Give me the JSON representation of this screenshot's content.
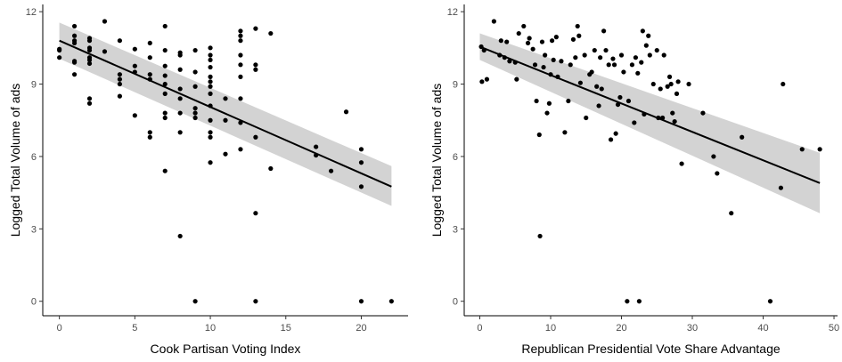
{
  "chart_data": [
    {
      "type": "scatter",
      "title": "",
      "xlabel": "Cook Partisan Voting Index",
      "ylabel": "Logged Total Volume of ads",
      "xlim": [
        -1.1,
        23.1
      ],
      "ylim": [
        -0.6,
        12.3
      ],
      "x_ticks": [
        0,
        5,
        10,
        15,
        20
      ],
      "y_ticks": [
        0,
        3,
        6,
        9,
        12
      ],
      "grid": false,
      "legend": "none",
      "point_color": "#000000",
      "fit": {
        "x": [
          0,
          22
        ],
        "y": [
          10.8,
          4.75
        ],
        "ci_lower": [
          10.05,
          3.95
        ],
        "ci_upper": [
          11.55,
          5.6
        ],
        "line_color": "#000000",
        "band_color": "#d3d3d3"
      },
      "points": [
        [
          0,
          10.1
        ],
        [
          0,
          10.4
        ],
        [
          0,
          10.45
        ],
        [
          1,
          11.4
        ],
        [
          1,
          11.0
        ],
        [
          1,
          10.8
        ],
        [
          1,
          10.7
        ],
        [
          1,
          9.95
        ],
        [
          1,
          9.9
        ],
        [
          1,
          9.4
        ],
        [
          2,
          10.9
        ],
        [
          2,
          10.8
        ],
        [
          2,
          10.5
        ],
        [
          2,
          10.4
        ],
        [
          2,
          10.1
        ],
        [
          2,
          10.0
        ],
        [
          2,
          9.85
        ],
        [
          2,
          8.4
        ],
        [
          2,
          8.2
        ],
        [
          3,
          11.6
        ],
        [
          3,
          10.35
        ],
        [
          4,
          10.8
        ],
        [
          4,
          9.4
        ],
        [
          4,
          9.2
        ],
        [
          4,
          9.0
        ],
        [
          4,
          8.5
        ],
        [
          5,
          10.45
        ],
        [
          5,
          9.75
        ],
        [
          5,
          9.5
        ],
        [
          5,
          7.7
        ],
        [
          6,
          10.7
        ],
        [
          6,
          10.1
        ],
        [
          6,
          9.4
        ],
        [
          6,
          9.2
        ],
        [
          6,
          7.0
        ],
        [
          6,
          6.8
        ],
        [
          7,
          11.4
        ],
        [
          7,
          10.4
        ],
        [
          7,
          9.75
        ],
        [
          7,
          9.35
        ],
        [
          7,
          9.0
        ],
        [
          7,
          8.6
        ],
        [
          7,
          7.8
        ],
        [
          7,
          7.6
        ],
        [
          7,
          5.4
        ],
        [
          8,
          10.3
        ],
        [
          8,
          10.2
        ],
        [
          8,
          9.6
        ],
        [
          8,
          8.8
        ],
        [
          8,
          8.4
        ],
        [
          8,
          7.8
        ],
        [
          8,
          7.0
        ],
        [
          8,
          2.7
        ],
        [
          9,
          10.4
        ],
        [
          9,
          9.5
        ],
        [
          9,
          8.9
        ],
        [
          9,
          8.0
        ],
        [
          9,
          7.8
        ],
        [
          9,
          7.6
        ],
        [
          9,
          0
        ],
        [
          10,
          10.5
        ],
        [
          10,
          10.2
        ],
        [
          10,
          10.0
        ],
        [
          10,
          9.7
        ],
        [
          10,
          9.3
        ],
        [
          10,
          9.1
        ],
        [
          10,
          8.9
        ],
        [
          10,
          8.6
        ],
        [
          10,
          8.1
        ],
        [
          10,
          7.5
        ],
        [
          10,
          7.0
        ],
        [
          10,
          6.8
        ],
        [
          10,
          5.75
        ],
        [
          11,
          8.4
        ],
        [
          11,
          7.5
        ],
        [
          11,
          6.1
        ],
        [
          12,
          11.2
        ],
        [
          12,
          11.0
        ],
        [
          12,
          10.8
        ],
        [
          12,
          10.2
        ],
        [
          12,
          9.8
        ],
        [
          12,
          9.3
        ],
        [
          12,
          8.4
        ],
        [
          12,
          7.4
        ],
        [
          12,
          6.3
        ],
        [
          13,
          11.3
        ],
        [
          13,
          9.8
        ],
        [
          13,
          9.6
        ],
        [
          13,
          6.8
        ],
        [
          13,
          3.65
        ],
        [
          13,
          0
        ],
        [
          14,
          11.1
        ],
        [
          14,
          5.5
        ],
        [
          17,
          6.4
        ],
        [
          17,
          6.05
        ],
        [
          18,
          5.4
        ],
        [
          19,
          7.85
        ],
        [
          20,
          6.3
        ],
        [
          20,
          5.75
        ],
        [
          20,
          4.75
        ],
        [
          20,
          0
        ],
        [
          22,
          0
        ]
      ]
    },
    {
      "type": "scatter",
      "title": "",
      "xlabel": "Republican Presidential Vote Share Advantage",
      "ylabel": "Logged Total Volume of ads",
      "xlim": [
        -2.2,
        50.5
      ],
      "ylim": [
        -0.6,
        12.3
      ],
      "x_ticks": [
        0,
        10,
        20,
        30,
        40,
        50
      ],
      "y_ticks": [
        0,
        3,
        6,
        9,
        12
      ],
      "grid": false,
      "legend": "none",
      "point_color": "#000000",
      "fit": {
        "x": [
          0,
          48
        ],
        "y": [
          10.55,
          4.9
        ],
        "ci_lower": [
          10.0,
          3.65
        ],
        "ci_upper": [
          11.1,
          6.15
        ],
        "line_color": "#000000",
        "band_color": "#d3d3d3"
      },
      "points": [
        [
          0.2,
          10.55
        ],
        [
          0.3,
          9.1
        ],
        [
          0.6,
          10.4
        ],
        [
          1.0,
          9.2
        ],
        [
          2.0,
          11.6
        ],
        [
          2.8,
          10.2
        ],
        [
          3.0,
          10.8
        ],
        [
          3.5,
          10.1
        ],
        [
          3.8,
          10.75
        ],
        [
          4.2,
          9.95
        ],
        [
          5.0,
          9.9
        ],
        [
          5.2,
          9.2
        ],
        [
          5.5,
          11.1
        ],
        [
          6.2,
          11.4
        ],
        [
          6.8,
          10.7
        ],
        [
          7.0,
          10.9
        ],
        [
          7.5,
          10.45
        ],
        [
          7.8,
          9.8
        ],
        [
          8.0,
          8.3
        ],
        [
          8.4,
          6.9
        ],
        [
          8.5,
          2.7
        ],
        [
          8.8,
          10.75
        ],
        [
          9.0,
          9.7
        ],
        [
          9.2,
          10.2
        ],
        [
          9.5,
          7.8
        ],
        [
          9.8,
          8.2
        ],
        [
          10.0,
          9.4
        ],
        [
          10.2,
          10.8
        ],
        [
          10.4,
          10.0
        ],
        [
          10.8,
          10.95
        ],
        [
          11.0,
          9.3
        ],
        [
          11.5,
          9.95
        ],
        [
          12.0,
          7.0
        ],
        [
          12.5,
          8.3
        ],
        [
          12.8,
          9.8
        ],
        [
          13.2,
          10.85
        ],
        [
          13.5,
          10.1
        ],
        [
          13.8,
          11.4
        ],
        [
          14.0,
          11.0
        ],
        [
          14.2,
          9.05
        ],
        [
          14.8,
          10.2
        ],
        [
          15.0,
          7.6
        ],
        [
          15.5,
          9.4
        ],
        [
          15.8,
          9.5
        ],
        [
          16.2,
          10.4
        ],
        [
          16.5,
          8.9
        ],
        [
          16.8,
          8.1
        ],
        [
          17.0,
          10.1
        ],
        [
          17.2,
          8.8
        ],
        [
          17.5,
          11.2
        ],
        [
          17.8,
          10.4
        ],
        [
          18.2,
          9.8
        ],
        [
          18.5,
          6.7
        ],
        [
          18.8,
          10.05
        ],
        [
          19.0,
          9.8
        ],
        [
          19.2,
          6.95
        ],
        [
          19.5,
          8.15
        ],
        [
          19.8,
          8.45
        ],
        [
          20.0,
          10.2
        ],
        [
          20.3,
          9.5
        ],
        [
          20.8,
          0
        ],
        [
          21.0,
          8.3
        ],
        [
          21.5,
          9.8
        ],
        [
          21.8,
          7.4
        ],
        [
          22.0,
          10.1
        ],
        [
          22.3,
          9.45
        ],
        [
          22.5,
          0
        ],
        [
          22.8,
          9.9
        ],
        [
          23.0,
          11.2
        ],
        [
          23.2,
          7.75
        ],
        [
          23.5,
          10.6
        ],
        [
          23.8,
          11.0
        ],
        [
          24.0,
          10.2
        ],
        [
          24.5,
          9.0
        ],
        [
          25.0,
          10.4
        ],
        [
          25.2,
          7.6
        ],
        [
          25.5,
          8.8
        ],
        [
          25.8,
          7.6
        ],
        [
          26.0,
          10.2
        ],
        [
          26.5,
          8.9
        ],
        [
          26.8,
          9.3
        ],
        [
          27.0,
          9.0
        ],
        [
          27.2,
          7.8
        ],
        [
          27.5,
          7.45
        ],
        [
          27.8,
          8.6
        ],
        [
          28.0,
          9.1
        ],
        [
          28.5,
          5.7
        ],
        [
          29.5,
          9.0
        ],
        [
          31.5,
          7.8
        ],
        [
          33.0,
          6.0
        ],
        [
          33.5,
          5.3
        ],
        [
          35.5,
          3.65
        ],
        [
          37.0,
          6.8
        ],
        [
          41.0,
          0
        ],
        [
          42.5,
          4.7
        ],
        [
          42.8,
          9.0
        ],
        [
          45.5,
          6.3
        ],
        [
          48.0,
          6.3
        ]
      ]
    }
  ]
}
